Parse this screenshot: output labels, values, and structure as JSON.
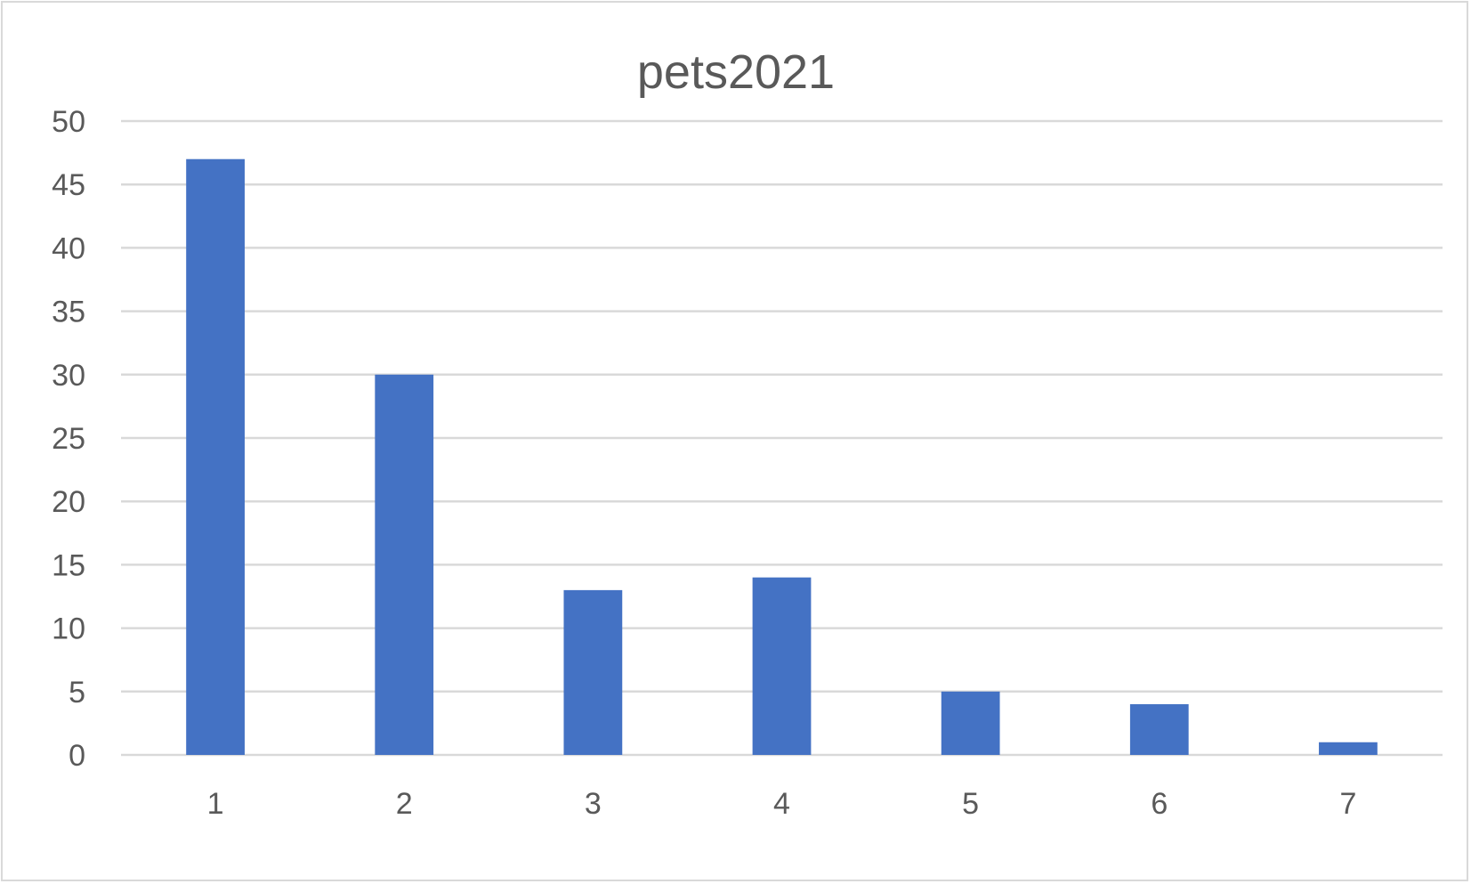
{
  "chart_data": {
    "type": "bar",
    "title": "pets2021",
    "categories": [
      "1",
      "2",
      "3",
      "4",
      "5",
      "6",
      "7"
    ],
    "series": [
      {
        "values": [
          47,
          30,
          13,
          14,
          5,
          4,
          1
        ]
      }
    ],
    "xlabel": "",
    "ylabel": "",
    "ylim": [
      0,
      50
    ],
    "yticks": [
      0,
      5,
      10,
      15,
      20,
      25,
      30,
      35,
      40,
      45,
      50
    ],
    "grid": true,
    "legend": "none",
    "colors": {
      "bar": "#4472C4",
      "grid": "#D9D9D9",
      "text": "#595959"
    }
  }
}
